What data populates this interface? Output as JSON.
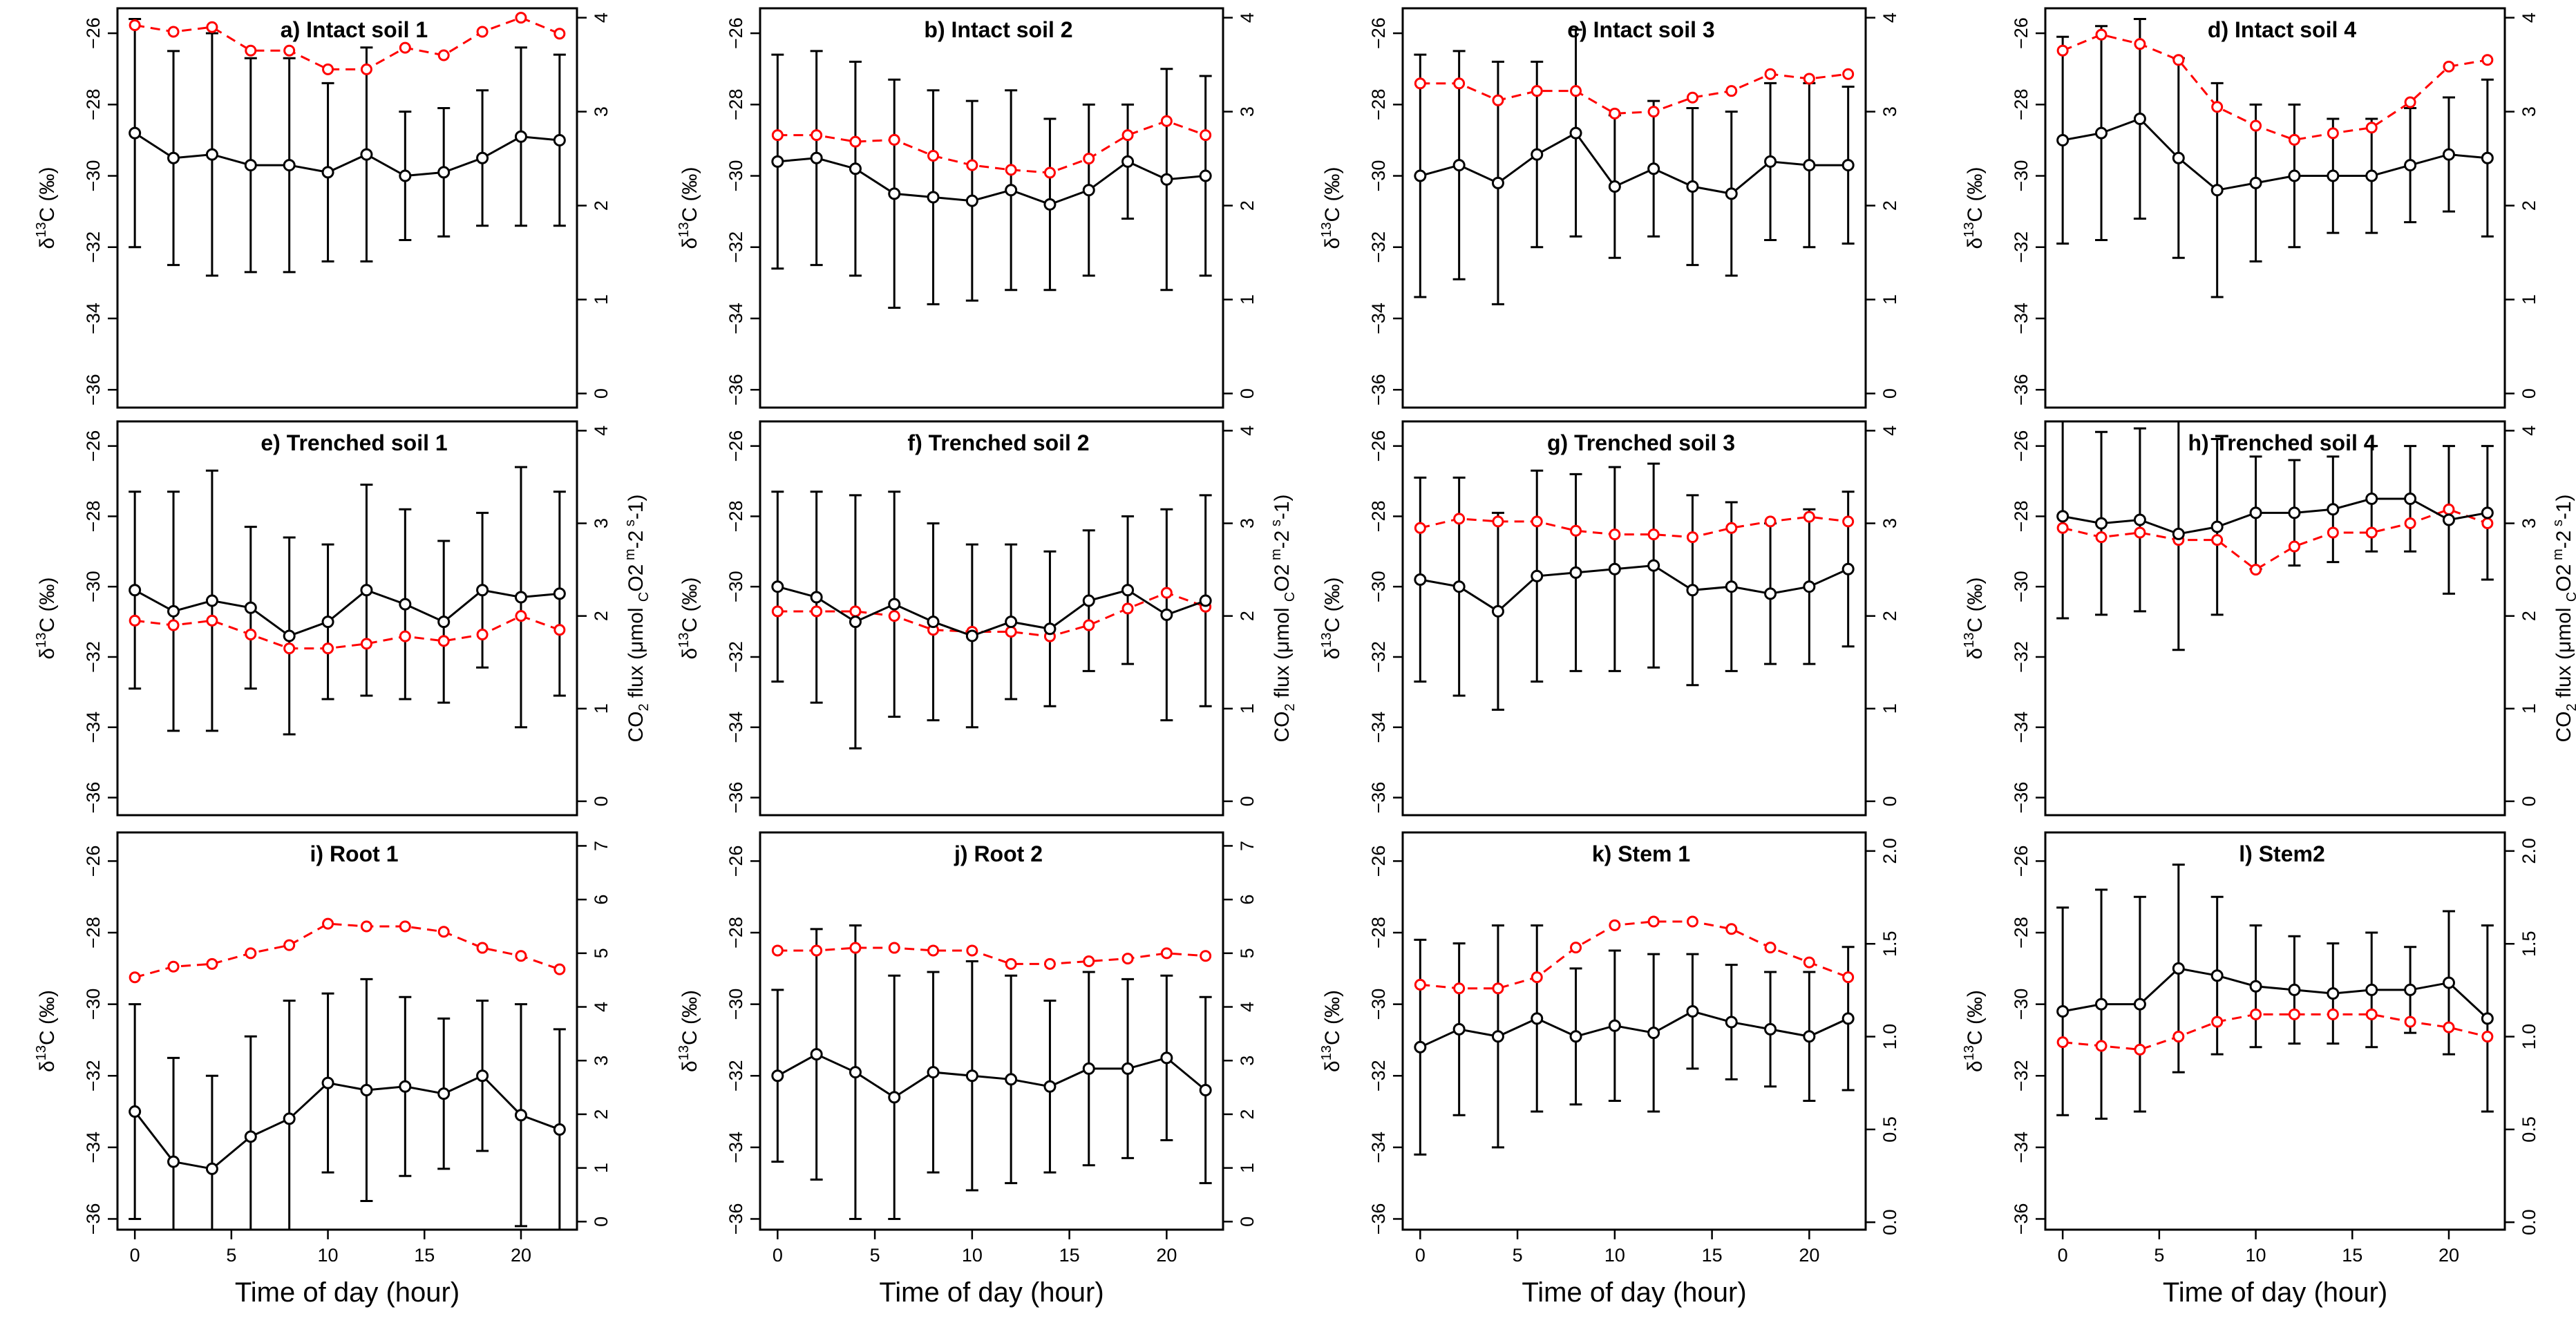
{
  "figure": {
    "x_axis_label": "Time of day (hour)",
    "left_axis_label": "δ13C (‰)",
    "right_axis_label_top": "CO2 flux (μmol CO2 m-2 s-1)"
  },
  "colors": {
    "delta13C_series": "#000000",
    "flux_series": "#ff0000"
  },
  "chart_data": [
    {
      "type": "line",
      "title": "a) Intact soil 1",
      "x": [
        0,
        2,
        4,
        6,
        8,
        10,
        12,
        14,
        16,
        18,
        20,
        22
      ],
      "xticks": [
        0,
        5,
        10,
        15,
        20
      ],
      "ylim_left": [
        -36.5,
        -25.3
      ],
      "ylim_right": [
        -0.15,
        4.1
      ],
      "yticks_left": [
        -26,
        -28,
        -30,
        -32,
        -34,
        -36
      ],
      "yticks_right": [
        0,
        1,
        2,
        3,
        4
      ],
      "series": [
        {
          "axis": "left",
          "style": "solid",
          "marker": "circle",
          "values": [
            -28.8,
            -29.5,
            -29.4,
            -29.7,
            -29.7,
            -29.9,
            -29.4,
            -30.0,
            -29.9,
            -29.5,
            -28.9,
            -29.0
          ],
          "error": [
            3.2,
            3.0,
            3.4,
            3.0,
            3.0,
            2.5,
            3.0,
            1.8,
            1.8,
            1.9,
            2.5,
            2.4
          ]
        },
        {
          "axis": "right",
          "style": "dashed",
          "marker": "circle",
          "values": [
            3.92,
            3.85,
            3.9,
            3.65,
            3.65,
            3.45,
            3.45,
            3.68,
            3.6,
            3.85,
            4.0,
            3.83
          ]
        }
      ]
    },
    {
      "type": "line",
      "title": "b) Intact soil 2",
      "x": [
        0,
        2,
        4,
        6,
        8,
        10,
        12,
        14,
        16,
        18,
        20,
        22
      ],
      "xticks": [
        0,
        5,
        10,
        15,
        20
      ],
      "ylim_left": [
        -36.5,
        -25.3
      ],
      "ylim_right": [
        -0.15,
        4.1
      ],
      "yticks_left": [
        -26,
        -28,
        -30,
        -32,
        -34,
        -36
      ],
      "yticks_right": [
        0,
        1,
        2,
        3,
        4
      ],
      "series": [
        {
          "axis": "left",
          "style": "solid",
          "marker": "circle",
          "values": [
            -29.6,
            -29.5,
            -29.8,
            -30.5,
            -30.6,
            -30.7,
            -30.4,
            -30.8,
            -30.4,
            -29.6,
            -30.1,
            -30.0
          ],
          "error": [
            3.0,
            3.0,
            3.0,
            3.2,
            3.0,
            2.8,
            2.8,
            2.4,
            2.4,
            1.6,
            3.1,
            2.8
          ]
        },
        {
          "axis": "right",
          "style": "dashed",
          "marker": "circle",
          "values": [
            2.75,
            2.75,
            2.68,
            2.7,
            2.53,
            2.43,
            2.38,
            2.35,
            2.5,
            2.75,
            2.9,
            2.75
          ]
        }
      ]
    },
    {
      "type": "line",
      "title": "c) Intact soil 3",
      "x": [
        0,
        2,
        4,
        6,
        8,
        10,
        12,
        14,
        16,
        18,
        20,
        22
      ],
      "xticks": [
        0,
        5,
        10,
        15,
        20
      ],
      "ylim_left": [
        -36.5,
        -25.3
      ],
      "ylim_right": [
        -0.15,
        4.1
      ],
      "yticks_left": [
        -26,
        -28,
        -30,
        -32,
        -34,
        -36
      ],
      "yticks_right": [
        0,
        1,
        2,
        3,
        4
      ],
      "series": [
        {
          "axis": "left",
          "style": "solid",
          "marker": "circle",
          "values": [
            -30.0,
            -29.7,
            -30.2,
            -29.4,
            -28.8,
            -30.3,
            -29.8,
            -30.3,
            -30.5,
            -29.6,
            -29.7,
            -29.7
          ],
          "error": [
            3.4,
            3.2,
            3.4,
            2.6,
            2.9,
            2.0,
            1.9,
            2.2,
            2.3,
            2.2,
            2.3,
            2.2
          ]
        },
        {
          "axis": "right",
          "style": "dashed",
          "marker": "circle",
          "values": [
            3.3,
            3.3,
            3.12,
            3.22,
            3.22,
            2.98,
            3.0,
            3.15,
            3.22,
            3.4,
            3.35,
            3.4
          ]
        }
      ]
    },
    {
      "type": "line",
      "title": "d) Intact soil 4",
      "x": [
        0,
        2,
        4,
        6,
        8,
        10,
        12,
        14,
        16,
        18,
        20,
        22
      ],
      "xticks": [
        0,
        5,
        10,
        15,
        20
      ],
      "ylim_left": [
        -36.5,
        -25.3
      ],
      "ylim_right": [
        -0.15,
        4.1
      ],
      "yticks_left": [
        -26,
        -28,
        -30,
        -32,
        -34,
        -36
      ],
      "yticks_right": [
        0,
        1,
        2,
        3,
        4
      ],
      "series": [
        {
          "axis": "left",
          "style": "solid",
          "marker": "circle",
          "values": [
            -29.0,
            -28.8,
            -28.4,
            -29.5,
            -30.4,
            -30.2,
            -30.0,
            -30.0,
            -30.0,
            -29.7,
            -29.4,
            -29.5
          ],
          "error": [
            2.9,
            3.0,
            2.8,
            2.8,
            3.0,
            2.2,
            2.0,
            1.6,
            1.6,
            1.6,
            1.6,
            2.2
          ]
        },
        {
          "axis": "right",
          "style": "dashed",
          "marker": "circle",
          "values": [
            3.65,
            3.82,
            3.72,
            3.55,
            3.05,
            2.85,
            2.7,
            2.77,
            2.83,
            3.1,
            3.48,
            3.55
          ]
        }
      ]
    },
    {
      "type": "line",
      "title": "e) Trenched soil 1",
      "x": [
        0,
        2,
        4,
        6,
        8,
        10,
        12,
        14,
        16,
        18,
        20,
        22
      ],
      "xticks": [
        0,
        5,
        10,
        15,
        20
      ],
      "ylim_left": [
        -36.5,
        -25.3
      ],
      "ylim_right": [
        -0.15,
        4.1
      ],
      "yticks_left": [
        -26,
        -28,
        -30,
        -32,
        -34,
        -36
      ],
      "yticks_right": [
        0,
        1,
        2,
        3,
        4
      ],
      "series": [
        {
          "axis": "left",
          "style": "solid",
          "marker": "circle",
          "values": [
            -30.1,
            -30.7,
            -30.4,
            -30.6,
            -31.4,
            -31.0,
            -30.1,
            -30.5,
            -31.0,
            -30.1,
            -30.3,
            -30.2
          ],
          "error": [
            2.8,
            3.4,
            3.7,
            2.3,
            2.8,
            2.2,
            3.0,
            2.7,
            2.3,
            2.2,
            3.7,
            2.9
          ]
        },
        {
          "axis": "right",
          "style": "dashed",
          "marker": "circle",
          "values": [
            1.95,
            1.9,
            1.95,
            1.8,
            1.65,
            1.65,
            1.7,
            1.78,
            1.73,
            1.8,
            2.0,
            1.85
          ]
        }
      ]
    },
    {
      "type": "line",
      "title": "f) Trenched soil 2",
      "x": [
        0,
        2,
        4,
        6,
        8,
        10,
        12,
        14,
        16,
        18,
        20,
        22
      ],
      "xticks": [
        0,
        5,
        10,
        15,
        20
      ],
      "ylim_left": [
        -36.5,
        -25.3
      ],
      "ylim_right": [
        -0.15,
        4.1
      ],
      "yticks_left": [
        -26,
        -28,
        -30,
        -32,
        -34,
        -36
      ],
      "yticks_right": [
        0,
        1,
        2,
        3,
        4
      ],
      "series": [
        {
          "axis": "left",
          "style": "solid",
          "marker": "circle",
          "values": [
            -30.0,
            -30.3,
            -31.0,
            -30.5,
            -31.0,
            -31.4,
            -31.0,
            -31.2,
            -30.4,
            -30.1,
            -30.8,
            -30.4
          ],
          "error": [
            2.7,
            3.0,
            3.6,
            3.2,
            2.8,
            2.6,
            2.2,
            2.2,
            2.0,
            2.1,
            3.0,
            3.0
          ]
        },
        {
          "axis": "right",
          "style": "dashed",
          "marker": "circle",
          "values": [
            2.05,
            2.05,
            2.05,
            2.0,
            1.85,
            1.83,
            1.83,
            1.78,
            1.9,
            2.08,
            2.25,
            2.1
          ]
        }
      ]
    },
    {
      "type": "line",
      "title": "g) Trenched soil 3",
      "x": [
        0,
        2,
        4,
        6,
        8,
        10,
        12,
        14,
        16,
        18,
        20,
        22
      ],
      "xticks": [
        0,
        5,
        10,
        15,
        20
      ],
      "ylim_left": [
        -36.5,
        -25.3
      ],
      "ylim_right": [
        -0.15,
        4.1
      ],
      "yticks_left": [
        -26,
        -28,
        -30,
        -32,
        -34,
        -36
      ],
      "yticks_right": [
        0,
        1,
        2,
        3,
        4
      ],
      "series": [
        {
          "axis": "left",
          "style": "solid",
          "marker": "circle",
          "values": [
            -29.8,
            -30.0,
            -30.7,
            -29.7,
            -29.6,
            -29.5,
            -29.4,
            -30.1,
            -30.0,
            -30.2,
            -30.0,
            -29.5
          ],
          "error": [
            2.9,
            3.1,
            2.8,
            3.0,
            2.8,
            2.9,
            2.9,
            2.7,
            2.4,
            2.0,
            2.2,
            2.2
          ]
        },
        {
          "axis": "right",
          "style": "dashed",
          "marker": "circle",
          "values": [
            2.95,
            3.05,
            3.02,
            3.02,
            2.92,
            2.88,
            2.88,
            2.85,
            2.95,
            3.02,
            3.07,
            3.02
          ]
        }
      ]
    },
    {
      "type": "line",
      "title": "h) Trenched soil 4",
      "x": [
        0,
        2,
        4,
        6,
        8,
        10,
        12,
        14,
        16,
        18,
        20,
        22
      ],
      "xticks": [
        0,
        5,
        10,
        15,
        20
      ],
      "ylim_left": [
        -36.5,
        -25.3
      ],
      "ylim_right": [
        -0.15,
        4.1
      ],
      "yticks_left": [
        -26,
        -28,
        -30,
        -32,
        -34,
        -36
      ],
      "yticks_right": [
        0,
        1,
        2,
        3,
        4
      ],
      "series": [
        {
          "axis": "left",
          "style": "solid",
          "marker": "circle",
          "values": [
            -28.0,
            -28.2,
            -28.1,
            -28.5,
            -28.3,
            -27.9,
            -27.9,
            -27.8,
            -27.5,
            -27.5,
            -28.1,
            -27.9
          ],
          "error": [
            2.9,
            2.6,
            2.6,
            3.3,
            2.5,
            1.6,
            1.5,
            1.5,
            1.5,
            1.5,
            2.1,
            1.9
          ]
        },
        {
          "axis": "right",
          "style": "dashed",
          "marker": "circle",
          "values": [
            2.95,
            2.85,
            2.9,
            2.82,
            2.82,
            2.5,
            2.75,
            2.9,
            2.9,
            3.0,
            3.15,
            3.0
          ]
        }
      ]
    },
    {
      "type": "line",
      "title": "i) Root 1",
      "x": [
        0,
        2,
        4,
        6,
        8,
        10,
        12,
        14,
        16,
        18,
        20,
        22
      ],
      "xticks": [
        0,
        5,
        10,
        15,
        20
      ],
      "ylim_left": [
        -36.3,
        -25.2
      ],
      "ylim_right": [
        -0.15,
        7.25
      ],
      "yticks_left": [
        -26,
        -28,
        -30,
        -32,
        -34,
        -36
      ],
      "yticks_right": [
        0,
        1,
        2,
        3,
        4,
        5,
        6,
        7
      ],
      "series": [
        {
          "axis": "left",
          "style": "solid",
          "marker": "circle",
          "values": [
            -33.0,
            -34.4,
            -34.6,
            -33.7,
            -33.2,
            -32.2,
            -32.4,
            -32.3,
            -32.5,
            -32.0,
            -33.1,
            -33.5
          ],
          "error": [
            3.0,
            2.9,
            2.6,
            2.8,
            3.3,
            2.5,
            3.1,
            2.5,
            2.1,
            2.1,
            3.1,
            2.8
          ]
        },
        {
          "axis": "right",
          "style": "dashed",
          "marker": "circle",
          "values": [
            4.55,
            4.75,
            4.8,
            5.0,
            5.15,
            5.55,
            5.5,
            5.5,
            5.4,
            5.1,
            4.95,
            4.7
          ]
        }
      ]
    },
    {
      "type": "line",
      "title": "j) Root 2",
      "x": [
        0,
        2,
        4,
        6,
        8,
        10,
        12,
        14,
        16,
        18,
        20,
        22
      ],
      "xticks": [
        0,
        5,
        10,
        15,
        20
      ],
      "ylim_left": [
        -36.3,
        -25.2
      ],
      "ylim_right": [
        -0.15,
        7.25
      ],
      "yticks_left": [
        -26,
        -28,
        -30,
        -32,
        -34,
        -36
      ],
      "yticks_right": [
        0,
        1,
        2,
        3,
        4,
        5,
        6,
        7
      ],
      "series": [
        {
          "axis": "left",
          "style": "solid",
          "marker": "circle",
          "values": [
            -32.0,
            -31.4,
            -31.9,
            -32.6,
            -31.9,
            -32.0,
            -32.1,
            -32.3,
            -31.8,
            -31.8,
            -31.5,
            -32.4
          ],
          "error": [
            2.4,
            3.5,
            4.1,
            3.4,
            2.8,
            3.2,
            2.9,
            2.4,
            2.7,
            2.5,
            2.3,
            2.6
          ]
        },
        {
          "axis": "right",
          "style": "dashed",
          "marker": "circle",
          "values": [
            5.05,
            5.05,
            5.1,
            5.1,
            5.05,
            5.05,
            4.8,
            4.8,
            4.85,
            4.9,
            5.0,
            4.95
          ]
        }
      ]
    },
    {
      "type": "line",
      "title": "k) Stem 1",
      "x": [
        0,
        2,
        4,
        6,
        8,
        10,
        12,
        14,
        16,
        18,
        20,
        22
      ],
      "xticks": [
        0,
        5,
        10,
        15,
        20
      ],
      "ylim_left": [
        -36.3,
        -25.2
      ],
      "ylim_right": [
        -0.04,
        2.1
      ],
      "yticks_left": [
        -26,
        -28,
        -30,
        -32,
        -34,
        -36
      ],
      "yticks_right": [
        0.0,
        0.5,
        1.0,
        1.5,
        2.0
      ],
      "series": [
        {
          "axis": "left",
          "style": "solid",
          "marker": "circle",
          "values": [
            -31.2,
            -30.7,
            -30.9,
            -30.4,
            -30.9,
            -30.6,
            -30.8,
            -30.2,
            -30.5,
            -30.7,
            -30.9,
            -30.4
          ],
          "error": [
            3.0,
            2.4,
            3.1,
            2.6,
            1.9,
            2.1,
            2.2,
            1.6,
            1.6,
            1.6,
            1.8,
            2.0
          ]
        },
        {
          "axis": "right",
          "style": "dashed",
          "marker": "circle",
          "values": [
            1.28,
            1.26,
            1.26,
            1.32,
            1.48,
            1.6,
            1.62,
            1.62,
            1.58,
            1.48,
            1.4,
            1.32
          ]
        }
      ]
    },
    {
      "type": "line",
      "title": "l) Stem2",
      "x": [
        0,
        2,
        4,
        6,
        8,
        10,
        12,
        14,
        16,
        18,
        20,
        22
      ],
      "xticks": [
        0,
        5,
        10,
        15,
        20
      ],
      "ylim_left": [
        -36.3,
        -25.2
      ],
      "ylim_right": [
        -0.04,
        2.1
      ],
      "yticks_left": [
        -26,
        -28,
        -30,
        -32,
        -34,
        -36
      ],
      "yticks_right": [
        0.0,
        0.5,
        1.0,
        1.5,
        2.0
      ],
      "series": [
        {
          "axis": "left",
          "style": "solid",
          "marker": "circle",
          "values": [
            -30.2,
            -30.0,
            -30.0,
            -29.0,
            -29.2,
            -29.5,
            -29.6,
            -29.7,
            -29.6,
            -29.6,
            -29.4,
            -30.4
          ],
          "error": [
            2.9,
            3.2,
            3.0,
            2.9,
            2.2,
            1.7,
            1.5,
            1.4,
            1.6,
            1.2,
            2.0,
            2.6
          ]
        },
        {
          "axis": "right",
          "style": "dashed",
          "marker": "circle",
          "values": [
            0.97,
            0.95,
            0.93,
            1.0,
            1.08,
            1.12,
            1.12,
            1.12,
            1.12,
            1.08,
            1.05,
            1.0
          ]
        }
      ]
    }
  ]
}
